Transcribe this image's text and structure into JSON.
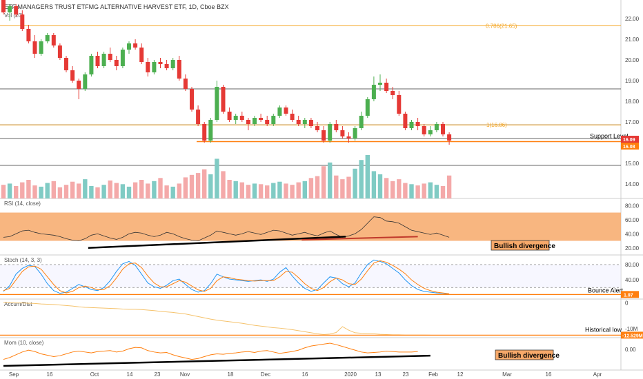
{
  "chart_data": {
    "type": "candlestick",
    "title": "ETF MANAGERS TRUST ETFMG ALTERNATIVE HARVEST ETF, 1D, Cboe BZX",
    "volume_label": "Vol (20)",
    "x_ticks": [
      "Sep",
      "16",
      "Oct",
      "14",
      "23",
      "Nov",
      "18",
      "Dec",
      "16",
      "2020",
      "13",
      "23",
      "Feb",
      "12",
      "Mar",
      "16",
      "Apr"
    ],
    "price_axis": {
      "ticks": [
        "22.00",
        "21.00",
        "20.00",
        "19.00",
        "18.00",
        "17.00",
        "16.00",
        "15.00",
        "14.00"
      ],
      "ylim": [
        13.3,
        22.8
      ]
    },
    "fib_levels": [
      {
        "label": "0.786(21.65)",
        "value": 21.65
      },
      {
        "label": "1(16.86)",
        "value": 16.86
      }
    ],
    "horizontal_levels": [
      18.6,
      16.86,
      16.2,
      14.9
    ],
    "support": {
      "label": "Support Level",
      "value": 16.05
    },
    "price_badges": [
      {
        "label": "16.09",
        "color": "#e53935"
      },
      {
        "label": "16.08",
        "color": "#ff7f0e"
      }
    ],
    "candles": [
      {
        "o": 23.0,
        "h": 23.3,
        "l": 22.2,
        "c": 22.3
      },
      {
        "o": 22.3,
        "h": 22.7,
        "l": 21.9,
        "c": 22.6
      },
      {
        "o": 22.6,
        "h": 22.7,
        "l": 22.1,
        "c": 22.2
      },
      {
        "o": 22.2,
        "h": 22.4,
        "l": 21.4,
        "c": 21.5
      },
      {
        "o": 21.5,
        "h": 21.7,
        "l": 20.8,
        "c": 20.9
      },
      {
        "o": 20.9,
        "h": 21.2,
        "l": 20.1,
        "c": 20.3
      },
      {
        "o": 20.3,
        "h": 21.0,
        "l": 20.2,
        "c": 20.9
      },
      {
        "o": 20.9,
        "h": 21.3,
        "l": 20.8,
        "c": 21.2
      },
      {
        "o": 21.2,
        "h": 21.3,
        "l": 20.6,
        "c": 20.7
      },
      {
        "o": 20.7,
        "h": 20.8,
        "l": 20.0,
        "c": 20.1
      },
      {
        "o": 20.1,
        "h": 20.2,
        "l": 19.4,
        "c": 19.5
      },
      {
        "o": 19.5,
        "h": 19.7,
        "l": 18.9,
        "c": 19.0
      },
      {
        "o": 19.0,
        "h": 19.1,
        "l": 18.1,
        "c": 18.6
      },
      {
        "o": 18.6,
        "h": 19.4,
        "l": 18.5,
        "c": 19.3
      },
      {
        "o": 19.3,
        "h": 20.3,
        "l": 19.2,
        "c": 20.2
      },
      {
        "o": 20.2,
        "h": 20.4,
        "l": 19.6,
        "c": 19.7
      },
      {
        "o": 19.7,
        "h": 20.4,
        "l": 19.6,
        "c": 20.3
      },
      {
        "o": 20.3,
        "h": 20.6,
        "l": 19.9,
        "c": 20.0
      },
      {
        "o": 20.0,
        "h": 20.2,
        "l": 19.5,
        "c": 19.7
      },
      {
        "o": 19.7,
        "h": 20.6,
        "l": 19.6,
        "c": 20.5
      },
      {
        "o": 20.5,
        "h": 20.9,
        "l": 20.3,
        "c": 20.8
      },
      {
        "o": 20.8,
        "h": 21.0,
        "l": 20.5,
        "c": 20.6
      },
      {
        "o": 20.6,
        "h": 20.8,
        "l": 19.8,
        "c": 19.9
      },
      {
        "o": 19.9,
        "h": 20.1,
        "l": 19.2,
        "c": 19.4
      },
      {
        "o": 19.4,
        "h": 20.0,
        "l": 19.3,
        "c": 19.9
      },
      {
        "o": 19.9,
        "h": 20.1,
        "l": 19.6,
        "c": 19.8
      },
      {
        "o": 19.8,
        "h": 20.0,
        "l": 19.5,
        "c": 19.6
      },
      {
        "o": 19.6,
        "h": 20.1,
        "l": 19.5,
        "c": 20.0
      },
      {
        "o": 20.0,
        "h": 20.2,
        "l": 19.0,
        "c": 19.1
      },
      {
        "o": 19.1,
        "h": 19.3,
        "l": 18.5,
        "c": 18.6
      },
      {
        "o": 18.6,
        "h": 18.7,
        "l": 17.5,
        "c": 17.6
      },
      {
        "o": 17.6,
        "h": 17.8,
        "l": 16.8,
        "c": 16.9
      },
      {
        "o": 16.9,
        "h": 17.0,
        "l": 16.0,
        "c": 16.1
      },
      {
        "o": 16.1,
        "h": 17.2,
        "l": 16.0,
        "c": 17.1
      },
      {
        "o": 17.1,
        "h": 19.0,
        "l": 17.0,
        "c": 18.7
      },
      {
        "o": 18.7,
        "h": 18.8,
        "l": 17.4,
        "c": 17.5
      },
      {
        "o": 17.5,
        "h": 17.7,
        "l": 17.0,
        "c": 17.1
      },
      {
        "o": 17.1,
        "h": 17.4,
        "l": 16.9,
        "c": 17.3
      },
      {
        "o": 17.3,
        "h": 17.5,
        "l": 17.0,
        "c": 17.1
      },
      {
        "o": 17.1,
        "h": 17.2,
        "l": 16.6,
        "c": 16.9
      },
      {
        "o": 16.9,
        "h": 17.3,
        "l": 16.8,
        "c": 17.2
      },
      {
        "o": 17.2,
        "h": 17.4,
        "l": 17.0,
        "c": 17.1
      },
      {
        "o": 17.1,
        "h": 17.3,
        "l": 16.8,
        "c": 16.9
      },
      {
        "o": 16.9,
        "h": 17.4,
        "l": 16.8,
        "c": 17.3
      },
      {
        "o": 17.3,
        "h": 17.8,
        "l": 17.2,
        "c": 17.7
      },
      {
        "o": 17.7,
        "h": 17.8,
        "l": 17.3,
        "c": 17.4
      },
      {
        "o": 17.4,
        "h": 17.6,
        "l": 17.0,
        "c": 17.1
      },
      {
        "o": 17.1,
        "h": 17.3,
        "l": 16.8,
        "c": 16.9
      },
      {
        "o": 16.9,
        "h": 17.2,
        "l": 16.7,
        "c": 17.1
      },
      {
        "o": 17.1,
        "h": 17.2,
        "l": 16.7,
        "c": 16.8
      },
      {
        "o": 16.8,
        "h": 17.0,
        "l": 16.5,
        "c": 16.6
      },
      {
        "o": 16.6,
        "h": 16.8,
        "l": 16.0,
        "c": 16.1
      },
      {
        "o": 16.1,
        "h": 17.0,
        "l": 16.0,
        "c": 16.9
      },
      {
        "o": 16.9,
        "h": 17.1,
        "l": 16.5,
        "c": 16.6
      },
      {
        "o": 16.6,
        "h": 16.8,
        "l": 16.2,
        "c": 16.3
      },
      {
        "o": 16.3,
        "h": 16.5,
        "l": 16.0,
        "c": 16.2
      },
      {
        "o": 16.2,
        "h": 16.8,
        "l": 16.1,
        "c": 16.7
      },
      {
        "o": 16.7,
        "h": 17.5,
        "l": 16.6,
        "c": 17.3
      },
      {
        "o": 17.3,
        "h": 18.2,
        "l": 17.2,
        "c": 18.1
      },
      {
        "o": 18.1,
        "h": 19.2,
        "l": 18.0,
        "c": 18.8
      },
      {
        "o": 18.8,
        "h": 19.3,
        "l": 18.5,
        "c": 18.9
      },
      {
        "o": 18.9,
        "h": 19.1,
        "l": 18.4,
        "c": 18.5
      },
      {
        "o": 18.5,
        "h": 18.7,
        "l": 18.1,
        "c": 18.3
      },
      {
        "o": 18.3,
        "h": 18.5,
        "l": 17.3,
        "c": 17.4
      },
      {
        "o": 17.4,
        "h": 17.5,
        "l": 16.6,
        "c": 16.7
      },
      {
        "o": 16.7,
        "h": 17.1,
        "l": 16.6,
        "c": 17.0
      },
      {
        "o": 17.0,
        "h": 17.2,
        "l": 16.6,
        "c": 16.8
      },
      {
        "o": 16.8,
        "h": 16.9,
        "l": 16.3,
        "c": 16.4
      },
      {
        "o": 16.4,
        "h": 16.8,
        "l": 16.3,
        "c": 16.6
      },
      {
        "o": 16.6,
        "h": 17.0,
        "l": 16.5,
        "c": 16.9
      },
      {
        "o": 16.9,
        "h": 17.0,
        "l": 16.3,
        "c": 16.4
      },
      {
        "o": 16.4,
        "h": 16.5,
        "l": 15.9,
        "c": 16.1
      }
    ],
    "volume": [
      22,
      24,
      20,
      26,
      30,
      21,
      19,
      25,
      28,
      18,
      22,
      27,
      24,
      31,
      20,
      18,
      22,
      29,
      25,
      23,
      19,
      26,
      30,
      24,
      28,
      33,
      21,
      19,
      24,
      34,
      38,
      41,
      47,
      39,
      64,
      44,
      30,
      28,
      26,
      22,
      24,
      23,
      21,
      25,
      27,
      24,
      22,
      26,
      28,
      33,
      36,
      52,
      58,
      37,
      31,
      35,
      48,
      62,
      70,
      44,
      39,
      33,
      28,
      31,
      25,
      23,
      21,
      24,
      26,
      22,
      20,
      37
    ],
    "panels": [
      {
        "name": "rsi",
        "label": "RSI (14, close)",
        "axis": [
          "80.00",
          "60.00",
          "40.00",
          "20.00"
        ],
        "ylim": [
          10,
          90
        ],
        "band": [
          30,
          70
        ],
        "values": [
          35,
          36,
          40,
          44,
          45,
          42,
          40,
          39,
          38,
          36,
          33,
          31,
          30,
          33,
          38,
          40,
          37,
          34,
          32,
          35,
          40,
          42,
          41,
          38,
          36,
          38,
          42,
          40,
          36,
          33,
          31,
          30,
          34,
          38,
          44,
          42,
          40,
          38,
          40,
          43,
          41,
          39,
          42,
          45,
          44,
          41,
          38,
          40,
          42,
          39,
          37,
          41,
          44,
          39,
          35,
          37,
          40,
          46,
          55,
          64,
          63,
          58,
          57,
          55,
          50,
          45,
          43,
          41,
          39,
          41,
          38,
          35
        ],
        "trendline": [
          [
            13.5,
            20
          ],
          [
            54.5,
            36
          ]
        ],
        "trendline2": [
          [
            47.5,
            31.5
          ],
          [
            66,
            36
          ]
        ],
        "trend_note": "Bullish divergence"
      },
      {
        "name": "stoch",
        "label": "Stoch (14, 3, 3)",
        "axis": [
          "80.00",
          "40.00",
          "0.00"
        ],
        "ylim": [
          -10,
          105
        ],
        "band_lines": [
          80,
          20
        ],
        "k": [
          10,
          25,
          55,
          70,
          78,
          75,
          55,
          30,
          12,
          5,
          8,
          18,
          28,
          22,
          15,
          12,
          20,
          38,
          62,
          82,
          88,
          78,
          55,
          32,
          22,
          18,
          26,
          38,
          42,
          28,
          15,
          8,
          12,
          30,
          55,
          48,
          42,
          40,
          38,
          36,
          38,
          40,
          36,
          42,
          60,
          72,
          50,
          32,
          18,
          10,
          15,
          32,
          48,
          45,
          30,
          22,
          32,
          58,
          80,
          92,
          88,
          82,
          70,
          58,
          40,
          25,
          15,
          10,
          8,
          6,
          5,
          2
        ],
        "d": [
          12,
          18,
          40,
          62,
          74,
          76,
          68,
          48,
          28,
          12,
          6,
          10,
          20,
          24,
          20,
          14,
          15,
          25,
          45,
          68,
          82,
          84,
          72,
          50,
          32,
          22,
          22,
          30,
          38,
          34,
          24,
          14,
          10,
          18,
          38,
          48,
          46,
          42,
          40,
          38,
          37,
          38,
          38,
          38,
          48,
          62,
          60,
          46,
          30,
          18,
          12,
          20,
          35,
          45,
          40,
          30,
          28,
          42,
          64,
          84,
          90,
          86,
          78,
          68,
          56,
          40,
          28,
          18,
          12,
          8,
          6,
          4
        ],
        "bounce": {
          "label": "Bounce Alert",
          "value": 1.97,
          "badge": "1.97",
          "color": "#ff7f0e"
        }
      },
      {
        "name": "ad",
        "label": "Accum/Dist",
        "axis": [
          "0",
          "-10M",
          "-12.529M"
        ],
        "ylim": [
          -13.5,
          1.5
        ],
        "values": [
          0.2,
          0.1,
          0.0,
          0.0,
          -0.1,
          -0.2,
          -0.4,
          -0.5,
          -0.6,
          -0.8,
          -1.0,
          -1.2,
          -1.5,
          -1.7,
          -1.8,
          -1.9,
          -2.0,
          -2.1,
          -2.2,
          -2.4,
          -2.5,
          -2.5,
          -2.6,
          -2.8,
          -3.0,
          -3.3,
          -3.5,
          -3.7,
          -4.0,
          -4.3,
          -4.8,
          -5.3,
          -5.8,
          -6.3,
          -6.7,
          -7.0,
          -7.3,
          -7.6,
          -7.9,
          -8.3,
          -8.7,
          -9.0,
          -9.3,
          -9.6,
          -9.8,
          -10.1,
          -10.4,
          -10.8,
          -11.2,
          -11.6,
          -12.0,
          -12.3,
          -12.1,
          -11.5,
          -9.2,
          -10.6,
          -11.6,
          -11.8,
          -11.9,
          -12.0,
          -12.2,
          -12.3,
          -12.4,
          -12.4,
          -12.5,
          -12.5,
          -12.5,
          -12.5,
          -12.53
        ],
        "low_note": "Historical low",
        "badge": "-12.529M",
        "badge_color": "#ff7f0e"
      },
      {
        "name": "mom",
        "label": "Mom (10, close)",
        "axis": [
          "0.00"
        ],
        "ylim": [
          -4.5,
          2.5
        ],
        "values": [
          -2.2,
          -1.8,
          -1.2,
          -0.6,
          -0.2,
          -0.5,
          -1.0,
          -1.3,
          -1.6,
          -1.4,
          -1.0,
          -0.6,
          -0.4,
          -0.6,
          -0.8,
          -0.5,
          -0.4,
          -0.3,
          -0.6,
          -0.4,
          0.1,
          0.4,
          0.3,
          -0.3,
          -0.6,
          -0.8,
          -0.7,
          -1.2,
          -1.6,
          -1.9,
          -2.2,
          -2.0,
          -1.6,
          -1.2,
          -1.0,
          -1.1,
          -0.9,
          -0.8,
          -0.6,
          -0.5,
          -0.7,
          -0.4,
          -0.3,
          -0.6,
          -0.9,
          -0.7,
          -0.5,
          -0.2,
          0.3,
          0.7,
          0.9,
          1.1,
          1.3,
          1.0,
          0.6,
          0.2,
          -0.2,
          -0.6,
          -0.8,
          -0.7,
          -0.6,
          -0.4,
          -0.5,
          -0.6,
          -0.6,
          -0.6,
          -0.5
        ],
        "trendline": [
          [
            0,
            -3.6
          ],
          [
            68,
            -1.4
          ]
        ],
        "trend_note": "Bullish divergence"
      }
    ]
  }
}
